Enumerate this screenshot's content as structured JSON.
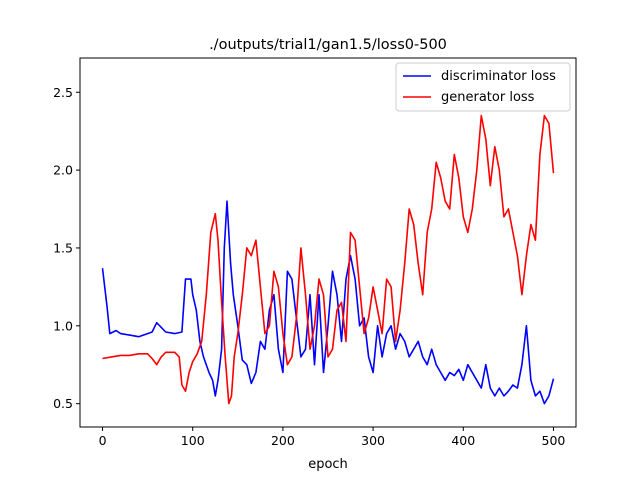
{
  "chart_data": {
    "type": "line",
    "title": "./outputs/trial1/gan1.5/loss0-500",
    "xlabel": "epoch",
    "ylabel": "",
    "xlim": [
      -25,
      525
    ],
    "ylim": [
      0.35,
      2.72
    ],
    "xticks": [
      0,
      100,
      200,
      300,
      400,
      500
    ],
    "yticks": [
      0.5,
      1.0,
      1.5,
      2.0,
      2.5
    ],
    "xtick_labels": [
      "0",
      "100",
      "200",
      "300",
      "400",
      "500"
    ],
    "ytick_labels": [
      "0.5",
      "1.0",
      "1.5",
      "2.0",
      "2.5"
    ],
    "legend_position": "top-right",
    "series": [
      {
        "name": "discriminator loss",
        "color": "#0000ff",
        "points": [
          [
            0,
            1.37
          ],
          [
            5,
            1.12
          ],
          [
            8,
            0.95
          ],
          [
            15,
            0.97
          ],
          [
            20,
            0.95
          ],
          [
            30,
            0.94
          ],
          [
            40,
            0.93
          ],
          [
            50,
            0.95
          ],
          [
            55,
            0.96
          ],
          [
            60,
            1.02
          ],
          [
            70,
            0.96
          ],
          [
            80,
            0.95
          ],
          [
            88,
            0.96
          ],
          [
            92,
            1.3
          ],
          [
            98,
            1.3
          ],
          [
            100,
            1.2
          ],
          [
            104,
            1.1
          ],
          [
            108,
            0.9
          ],
          [
            112,
            0.8
          ],
          [
            118,
            0.7
          ],
          [
            122,
            0.65
          ],
          [
            125,
            0.55
          ],
          [
            128,
            0.65
          ],
          [
            132,
            0.85
          ],
          [
            135,
            1.5
          ],
          [
            138,
            1.8
          ],
          [
            142,
            1.4
          ],
          [
            145,
            1.2
          ],
          [
            150,
            1.0
          ],
          [
            155,
            0.78
          ],
          [
            160,
            0.75
          ],
          [
            165,
            0.63
          ],
          [
            170,
            0.7
          ],
          [
            175,
            0.9
          ],
          [
            180,
            0.85
          ],
          [
            185,
            1.1
          ],
          [
            190,
            1.2
          ],
          [
            195,
            0.85
          ],
          [
            200,
            0.7
          ],
          [
            205,
            1.35
          ],
          [
            210,
            1.3
          ],
          [
            215,
            1.05
          ],
          [
            220,
            0.8
          ],
          [
            225,
            0.85
          ],
          [
            230,
            1.2
          ],
          [
            235,
            0.75
          ],
          [
            240,
            1.2
          ],
          [
            245,
            0.7
          ],
          [
            250,
            1.0
          ],
          [
            255,
            1.35
          ],
          [
            260,
            1.2
          ],
          [
            265,
            0.9
          ],
          [
            270,
            1.3
          ],
          [
            275,
            1.45
          ],
          [
            280,
            1.3
          ],
          [
            285,
            1.0
          ],
          [
            290,
            1.05
          ],
          [
            295,
            0.8
          ],
          [
            300,
            0.7
          ],
          [
            305,
            1.0
          ],
          [
            310,
            0.8
          ],
          [
            315,
            0.95
          ],
          [
            320,
            1.0
          ],
          [
            325,
            0.85
          ],
          [
            330,
            0.95
          ],
          [
            335,
            0.9
          ],
          [
            340,
            0.8
          ],
          [
            345,
            0.85
          ],
          [
            350,
            0.9
          ],
          [
            355,
            0.8
          ],
          [
            360,
            0.75
          ],
          [
            365,
            0.85
          ],
          [
            370,
            0.75
          ],
          [
            375,
            0.7
          ],
          [
            380,
            0.65
          ],
          [
            385,
            0.7
          ],
          [
            390,
            0.68
          ],
          [
            395,
            0.72
          ],
          [
            400,
            0.65
          ],
          [
            405,
            0.75
          ],
          [
            410,
            0.7
          ],
          [
            415,
            0.65
          ],
          [
            420,
            0.6
          ],
          [
            425,
            0.75
          ],
          [
            430,
            0.6
          ],
          [
            435,
            0.55
          ],
          [
            440,
            0.6
          ],
          [
            445,
            0.55
          ],
          [
            450,
            0.58
          ],
          [
            455,
            0.62
          ],
          [
            460,
            0.6
          ],
          [
            465,
            0.75
          ],
          [
            470,
            1.0
          ],
          [
            475,
            0.65
          ],
          [
            480,
            0.55
          ],
          [
            485,
            0.58
          ],
          [
            490,
            0.5
          ],
          [
            495,
            0.55
          ],
          [
            500,
            0.66
          ]
        ]
      },
      {
        "name": "generator loss",
        "color": "#ff0000",
        "points": [
          [
            0,
            0.79
          ],
          [
            10,
            0.8
          ],
          [
            20,
            0.81
          ],
          [
            30,
            0.81
          ],
          [
            40,
            0.82
          ],
          [
            50,
            0.82
          ],
          [
            55,
            0.79
          ],
          [
            60,
            0.75
          ],
          [
            65,
            0.8
          ],
          [
            70,
            0.83
          ],
          [
            80,
            0.83
          ],
          [
            85,
            0.8
          ],
          [
            88,
            0.62
          ],
          [
            92,
            0.58
          ],
          [
            96,
            0.7
          ],
          [
            100,
            0.77
          ],
          [
            105,
            0.82
          ],
          [
            110,
            0.9
          ],
          [
            115,
            1.2
          ],
          [
            120,
            1.6
          ],
          [
            125,
            1.72
          ],
          [
            128,
            1.55
          ],
          [
            132,
            1.15
          ],
          [
            136,
            0.8
          ],
          [
            140,
            0.5
          ],
          [
            143,
            0.55
          ],
          [
            146,
            0.8
          ],
          [
            150,
            0.95
          ],
          [
            155,
            1.2
          ],
          [
            160,
            1.5
          ],
          [
            165,
            1.45
          ],
          [
            170,
            1.55
          ],
          [
            175,
            1.25
          ],
          [
            180,
            0.95
          ],
          [
            185,
            1.0
          ],
          [
            190,
            1.35
          ],
          [
            195,
            1.25
          ],
          [
            200,
            0.95
          ],
          [
            205,
            0.75
          ],
          [
            210,
            0.8
          ],
          [
            215,
            1.05
          ],
          [
            220,
            1.5
          ],
          [
            225,
            1.2
          ],
          [
            230,
            0.85
          ],
          [
            235,
            1.0
          ],
          [
            240,
            1.3
          ],
          [
            245,
            1.2
          ],
          [
            250,
            0.8
          ],
          [
            255,
            0.85
          ],
          [
            260,
            1.1
          ],
          [
            265,
            1.15
          ],
          [
            270,
            0.9
          ],
          [
            275,
            1.6
          ],
          [
            280,
            1.55
          ],
          [
            285,
            1.25
          ],
          [
            290,
            0.95
          ],
          [
            295,
            1.05
          ],
          [
            300,
            1.25
          ],
          [
            305,
            1.1
          ],
          [
            310,
            0.95
          ],
          [
            315,
            1.3
          ],
          [
            320,
            1.25
          ],
          [
            325,
            0.9
          ],
          [
            330,
            1.1
          ],
          [
            335,
            1.4
          ],
          [
            340,
            1.75
          ],
          [
            345,
            1.65
          ],
          [
            350,
            1.4
          ],
          [
            355,
            1.2
          ],
          [
            360,
            1.6
          ],
          [
            365,
            1.75
          ],
          [
            370,
            2.05
          ],
          [
            375,
            1.95
          ],
          [
            380,
            1.8
          ],
          [
            385,
            1.75
          ],
          [
            390,
            2.1
          ],
          [
            395,
            1.95
          ],
          [
            400,
            1.7
          ],
          [
            405,
            1.6
          ],
          [
            410,
            1.75
          ],
          [
            415,
            2.0
          ],
          [
            420,
            2.35
          ],
          [
            425,
            2.2
          ],
          [
            430,
            1.9
          ],
          [
            435,
            2.15
          ],
          [
            440,
            2.0
          ],
          [
            445,
            1.7
          ],
          [
            450,
            1.75
          ],
          [
            455,
            1.6
          ],
          [
            460,
            1.45
          ],
          [
            465,
            1.2
          ],
          [
            470,
            1.45
          ],
          [
            475,
            1.65
          ],
          [
            480,
            1.55
          ],
          [
            485,
            2.1
          ],
          [
            490,
            2.35
          ],
          [
            495,
            2.3
          ],
          [
            500,
            1.98
          ]
        ]
      }
    ]
  }
}
